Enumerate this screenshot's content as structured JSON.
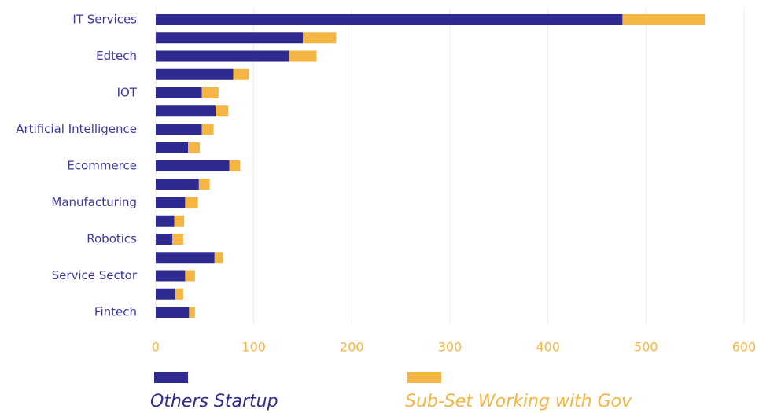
{
  "chart_data": {
    "type": "stacked_barh",
    "categories": [
      "IT Services",
      null,
      "Edtech",
      null,
      "IOT",
      null,
      "Artificial Intelligence",
      null,
      "Ecommerce",
      null,
      "Manufacturing",
      null,
      "Robotics",
      null,
      "Service Sector",
      null,
      "Fintech"
    ],
    "series": [
      {
        "name": "Others Startup",
        "color": "#2e2a8f",
        "values": [
          476,
          150,
          136,
          79,
          47,
          61,
          47,
          33,
          75,
          44,
          30,
          19,
          17,
          60,
          30,
          20,
          34
        ]
      },
      {
        "name": "Sub-Set Working with Gov",
        "color": "#f4b544",
        "values": [
          84,
          34,
          28,
          16,
          17,
          13,
          12,
          12,
          11,
          11,
          13,
          10,
          11,
          9,
          10,
          8,
          6
        ]
      }
    ],
    "xlim": [
      0,
      600
    ],
    "xticks": [
      0,
      100,
      200,
      300,
      400,
      500,
      600
    ],
    "grid": true
  }
}
